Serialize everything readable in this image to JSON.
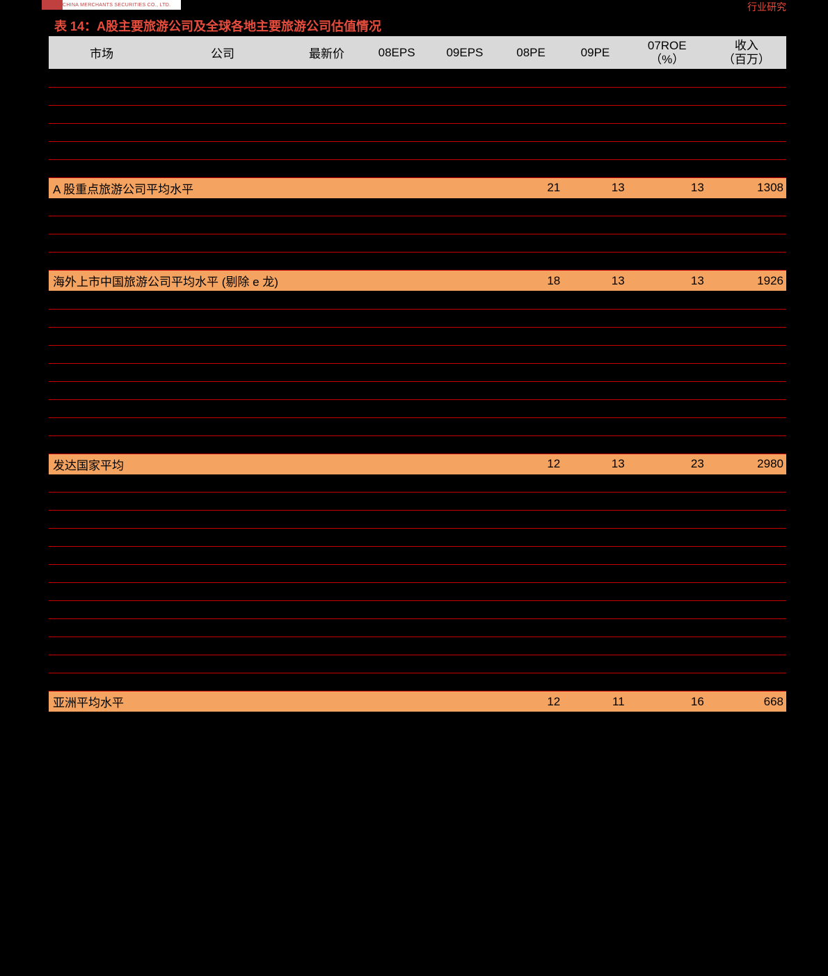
{
  "header": {
    "logo_subtitle": "CHINA MERCHANTS SECURITIES CO., LTD.",
    "top_right": "行业研究"
  },
  "title": "表 14：A股主要旅游公司及全球各地主要旅游公司估值情况",
  "columns": {
    "market": "市场",
    "company": "公司",
    "price": "最新价",
    "eps08": "08EPS",
    "eps09": "09EPS",
    "pe08": "08PE",
    "pe09": "09PE",
    "roe07_l1": "07ROE",
    "roe07_l2": "（%）",
    "rev_l1": "收入",
    "rev_l2": "（百万）"
  },
  "sections": [
    {
      "rows_before": 6,
      "summary": {
        "label": "A 股重点旅游公司平均水平",
        "pe08": "21",
        "pe09": "13",
        "roe": "13",
        "rev": "1308"
      }
    },
    {
      "rows_before": 4,
      "summary": {
        "label": "海外上市中国旅游公司平均水平 (剔除 e 龙)",
        "pe08": "18",
        "pe09": "13",
        "roe": "13",
        "rev": "1926"
      }
    },
    {
      "rows_before": 9,
      "summary": {
        "label": "发达国家平均",
        "pe08": "12",
        "pe09": "13",
        "roe": "23",
        "rev": "2980"
      }
    },
    {
      "rows_before": 12,
      "summary": {
        "label": "亚洲平均水平",
        "pe08": "12",
        "pe09": "11",
        "roe": "16",
        "rev": "668"
      }
    }
  ],
  "colors": {
    "title": "#e84c3d",
    "summary_bg": "#f4a460",
    "header_bg": "#d9d9d9",
    "row_border": "#c90000",
    "background": "#000000"
  }
}
